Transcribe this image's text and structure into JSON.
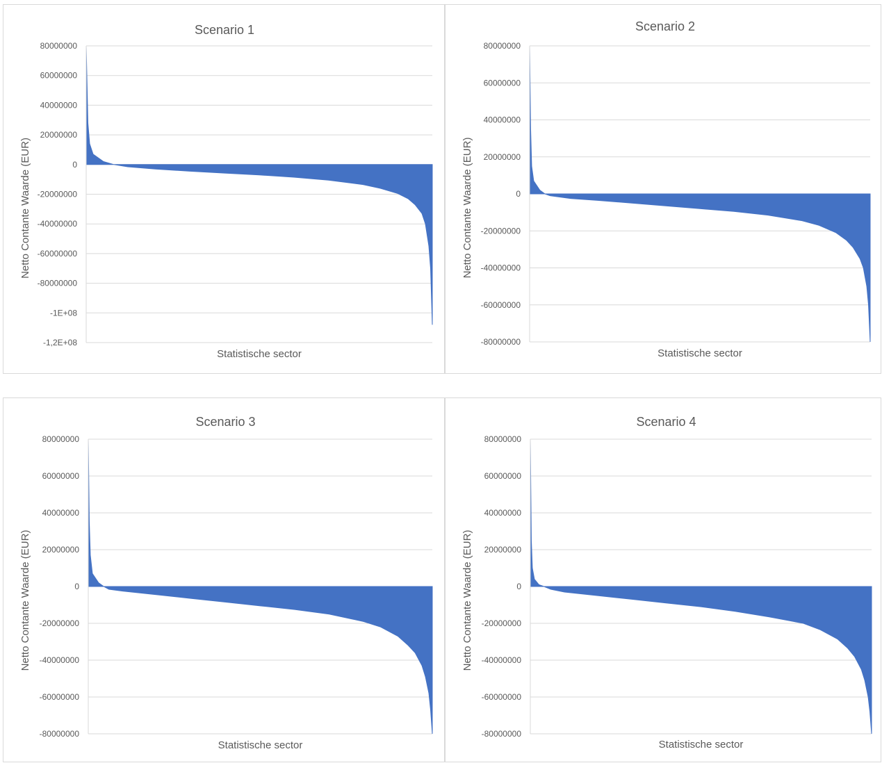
{
  "chart_data": [
    {
      "type": "area",
      "title": "Scenario 1",
      "xlabel": "Statistische sector",
      "ylabel": "Netto Contante Waarde (EUR)",
      "ylim": [
        -120000000,
        80000000
      ],
      "yticks": [
        "80000000",
        "60000000",
        "40000000",
        "20000000",
        "0",
        "-20000000",
        "-40000000",
        "-60000000",
        "-80000000",
        "-1E+08",
        "-1,2E+08"
      ],
      "grid": true,
      "legend": "none",
      "x_quantile": [
        0,
        0.005,
        0.01,
        0.02,
        0.05,
        0.08,
        0.12,
        0.2,
        0.3,
        0.4,
        0.5,
        0.6,
        0.7,
        0.8,
        0.85,
        0.9,
        0.93,
        0.95,
        0.97,
        0.98,
        0.99,
        0.995,
        1
      ],
      "values": [
        80000000,
        28000000,
        14000000,
        7000000,
        2000000,
        0,
        -1500000,
        -3000000,
        -4500000,
        -5800000,
        -7000000,
        -8500000,
        -10500000,
        -13500000,
        -16000000,
        -19500000,
        -23000000,
        -27000000,
        -33000000,
        -40000000,
        -55000000,
        -70000000,
        -108000000
      ],
      "color": "#4472c4"
    },
    {
      "type": "area",
      "title": "Scenario 2",
      "xlabel": "Statistische sector",
      "ylabel": "Netto Contante Waarde (EUR)",
      "ylim": [
        -80000000,
        80000000
      ],
      "yticks": [
        "80000000",
        "60000000",
        "40000000",
        "20000000",
        "0",
        "-20000000",
        "-40000000",
        "-60000000",
        "-80000000"
      ],
      "grid": true,
      "legend": "none",
      "x_quantile": [
        0,
        0.003,
        0.006,
        0.012,
        0.03,
        0.045,
        0.06,
        0.12,
        0.2,
        0.3,
        0.4,
        0.5,
        0.6,
        0.7,
        0.8,
        0.85,
        0.9,
        0.93,
        0.95,
        0.97,
        0.98,
        0.99,
        0.995,
        1
      ],
      "values": [
        80000000,
        35000000,
        15000000,
        7000000,
        2000000,
        0,
        -1000000,
        -2500000,
        -3500000,
        -5000000,
        -6500000,
        -8000000,
        -9500000,
        -11500000,
        -14500000,
        -17000000,
        -21000000,
        -25000000,
        -29000000,
        -35000000,
        -40000000,
        -50000000,
        -60000000,
        -80000000
      ],
      "color": "#4472c4"
    },
    {
      "type": "area",
      "title": "Scenario 3",
      "xlabel": "Statistische sector",
      "ylabel": "Netto Contante Waarde (EUR)",
      "ylim": [
        -80000000,
        80000000
      ],
      "yticks": [
        "80000000",
        "60000000",
        "40000000",
        "20000000",
        "0",
        "-20000000",
        "-40000000",
        "-60000000",
        "-80000000"
      ],
      "grid": true,
      "legend": "none",
      "x_quantile": [
        0,
        0.003,
        0.006,
        0.012,
        0.03,
        0.045,
        0.06,
        0.1,
        0.2,
        0.3,
        0.4,
        0.5,
        0.6,
        0.7,
        0.8,
        0.85,
        0.9,
        0.93,
        0.95,
        0.97,
        0.98,
        0.99,
        0.995,
        1
      ],
      "values": [
        80000000,
        35000000,
        17000000,
        7000000,
        2000000,
        0,
        -1500000,
        -2500000,
        -4500000,
        -6500000,
        -8500000,
        -10500000,
        -12500000,
        -15000000,
        -19000000,
        -22000000,
        -27000000,
        -32000000,
        -36000000,
        -43000000,
        -49000000,
        -58000000,
        -67000000,
        -80000000
      ],
      "color": "#4472c4"
    },
    {
      "type": "area",
      "title": "Scenario 4",
      "xlabel": "Statistische sector",
      "ylabel": "Netto Contante Waarde (EUR)",
      "ylim": [
        -80000000,
        80000000
      ],
      "yticks": [
        "80000000",
        "60000000",
        "40000000",
        "20000000",
        "0",
        "-20000000",
        "-40000000",
        "-60000000",
        "-80000000"
      ],
      "grid": true,
      "legend": "none",
      "x_quantile": [
        0,
        0.003,
        0.006,
        0.012,
        0.025,
        0.04,
        0.06,
        0.1,
        0.2,
        0.3,
        0.4,
        0.5,
        0.6,
        0.7,
        0.8,
        0.85,
        0.9,
        0.93,
        0.95,
        0.97,
        0.98,
        0.99,
        0.995,
        1
      ],
      "values": [
        80000000,
        25000000,
        10000000,
        4000000,
        1000000,
        0,
        -1500000,
        -3000000,
        -5000000,
        -7000000,
        -9000000,
        -11000000,
        -13500000,
        -16500000,
        -20000000,
        -23500000,
        -28500000,
        -33500000,
        -38000000,
        -45000000,
        -51000000,
        -60000000,
        -68000000,
        -80000000
      ],
      "color": "#4472c4"
    }
  ]
}
